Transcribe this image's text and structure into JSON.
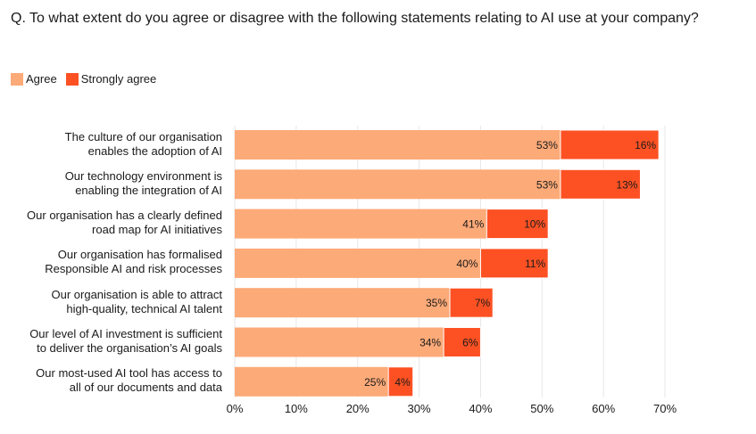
{
  "chart_data": {
    "type": "bar",
    "orientation": "horizontal",
    "stacked": true,
    "title": "Q. To what extent do you agree or disagree with the following statements relating to AI use at your company?",
    "xlabel": "",
    "ylabel": "",
    "xlim": [
      0,
      70
    ],
    "x_ticks": [
      0,
      10,
      20,
      30,
      40,
      50,
      60,
      70
    ],
    "x_tick_labels": [
      "0%",
      "10%",
      "20%",
      "30%",
      "40%",
      "50%",
      "60%",
      "70%"
    ],
    "grid": true,
    "legend_position": "top-left",
    "categories": [
      [
        "The culture of our organisation",
        "enables the adoption of AI"
      ],
      [
        "Our technology environment is",
        "enabling the integration of AI"
      ],
      [
        "Our organisation has a clearly defined",
        "road map for AI initiatives"
      ],
      [
        "Our organisation has formalised",
        "Responsible AI and risk processes"
      ],
      [
        "Our organisation is able to attract",
        "high-quality, technical AI talent"
      ],
      [
        "Our level of AI investment is sufficient",
        "to deliver the organisation’s AI goals"
      ],
      [
        "Our most-used AI tool has access to",
        "all of our documents and data"
      ]
    ],
    "series": [
      {
        "name": "Agree",
        "color": "#fcaa78",
        "values": [
          53,
          53,
          41,
          40,
          35,
          34,
          25
        ],
        "labels": [
          "53%",
          "53%",
          "41%",
          "40%",
          "35%",
          "34%",
          "25%"
        ]
      },
      {
        "name": "Strongly agree",
        "color": "#fd5123",
        "values": [
          16,
          13,
          10,
          11,
          7,
          6,
          4
        ],
        "labels": [
          "16%",
          "13%",
          "10%",
          "11%",
          "7%",
          "6%",
          "4%"
        ]
      }
    ]
  }
}
